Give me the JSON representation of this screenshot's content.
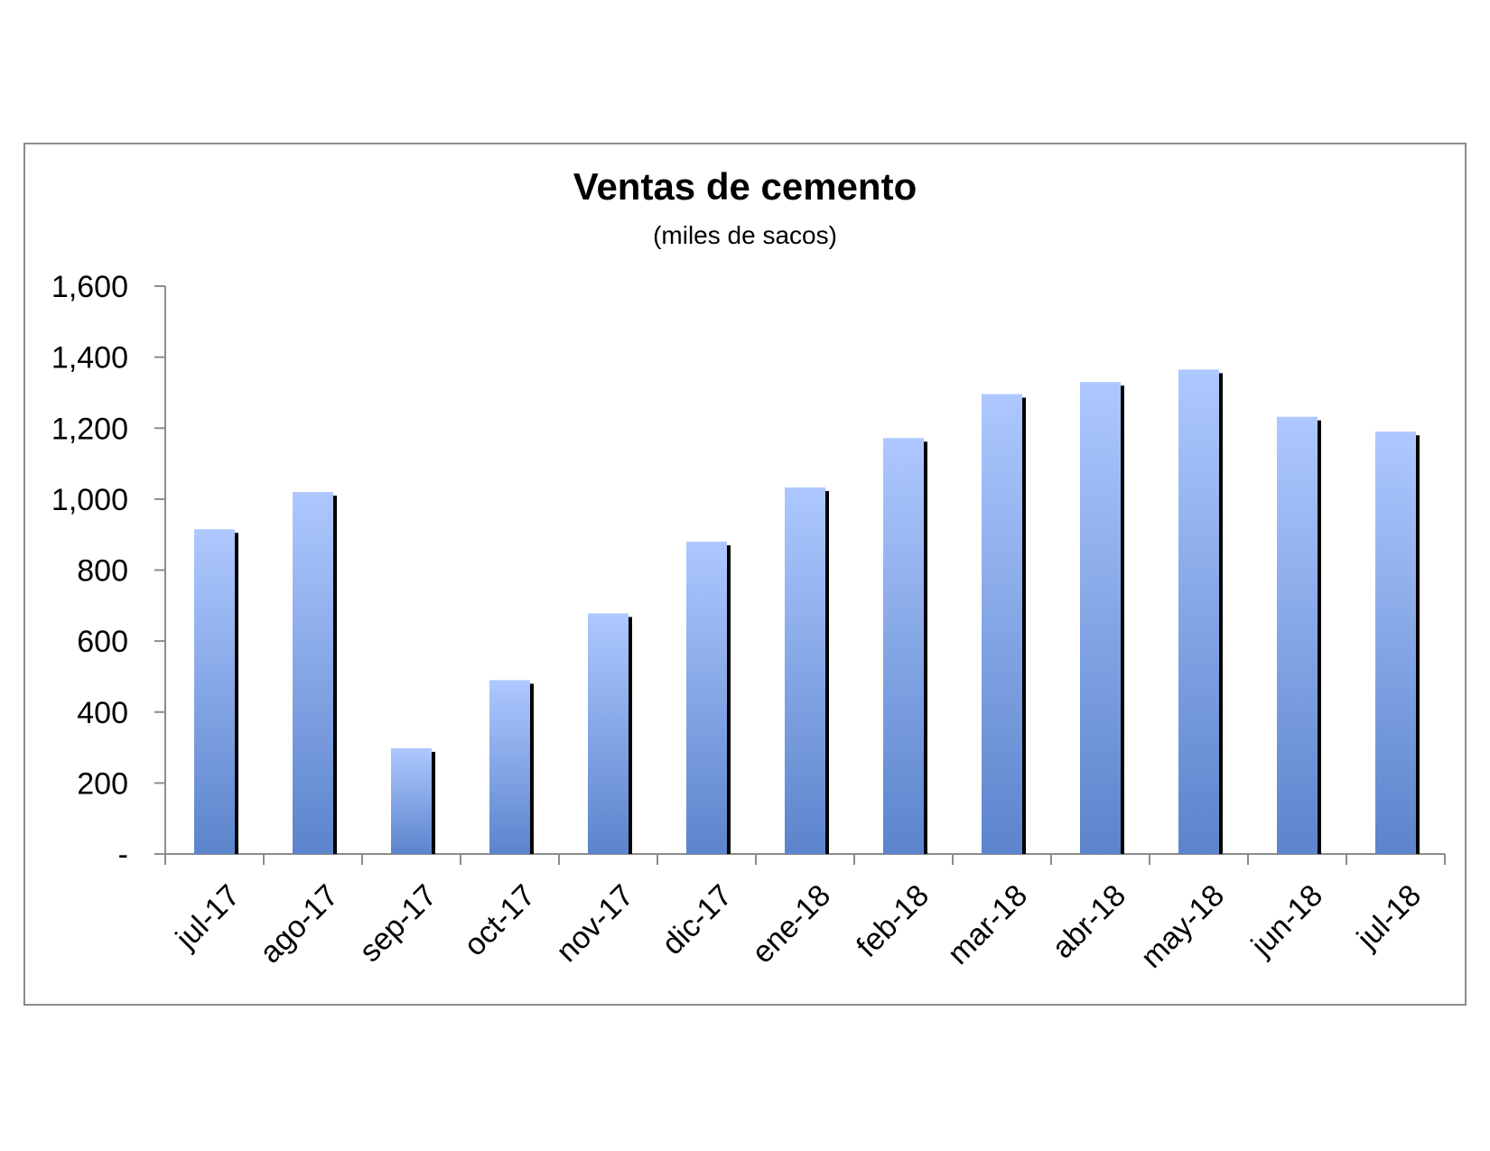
{
  "chart_data": {
    "type": "bar",
    "title": "Ventas de cemento",
    "subtitle": "(miles de sacos)",
    "xlabel": "",
    "ylabel": "",
    "categories": [
      "jul-17",
      "ago-17",
      "sep-17",
      "oct-17",
      "nov-17",
      "dic-17",
      "ene-18",
      "feb-18",
      "mar-18",
      "abr-18",
      "may-18",
      "jun-18",
      "jul-18"
    ],
    "values": [
      915,
      1020,
      298,
      490,
      678,
      880,
      1033,
      1172,
      1296,
      1330,
      1365,
      1232,
      1190
    ],
    "ylim": [
      0,
      1600
    ],
    "yticks": [
      0,
      200,
      400,
      600,
      800,
      1000,
      1200,
      1400,
      1600
    ],
    "ytick_labels": [
      "-",
      "200",
      "400",
      "600",
      "800",
      "1,000",
      "1,200",
      "1,400",
      "1,600"
    ],
    "grid": false,
    "legend": "none",
    "colors": {
      "bar_top": "#aec8ff",
      "bar_bottom": "#5b84cc",
      "bar_shadow": "#000000",
      "axis": "#8c8c8c"
    }
  }
}
